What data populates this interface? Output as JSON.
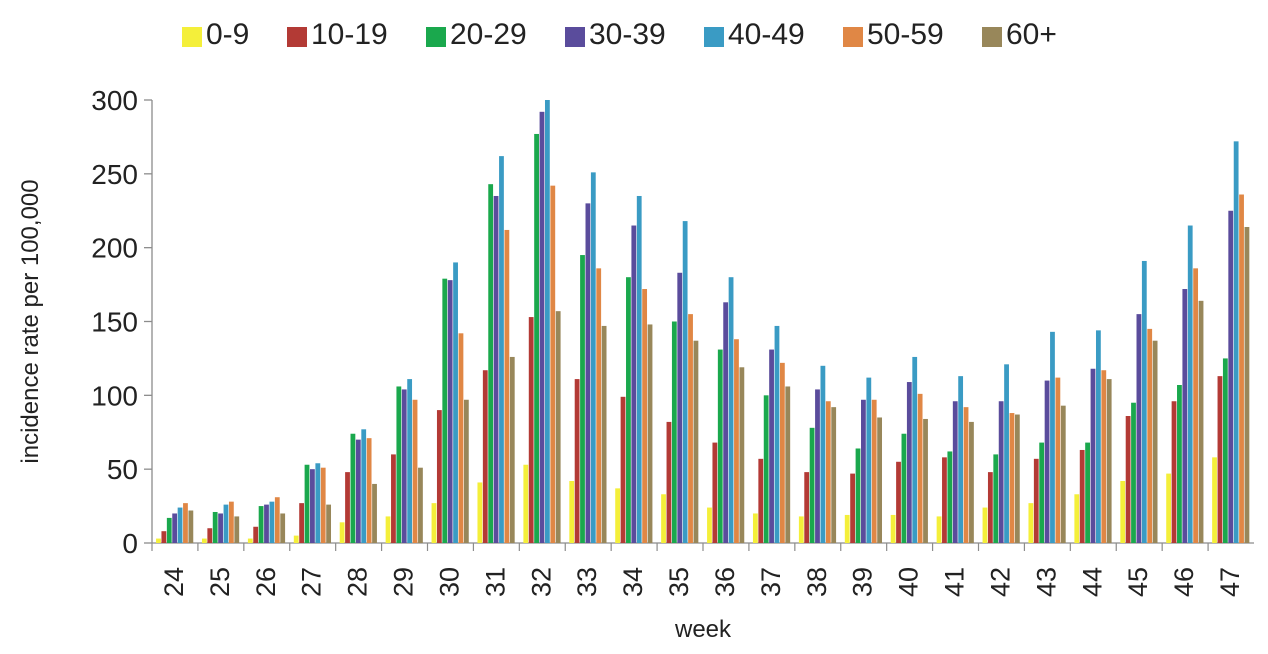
{
  "chart_data": {
    "type": "bar",
    "xlabel": "week",
    "ylabel": "incidence rate per 100,000",
    "ylim": [
      0,
      300
    ],
    "yticks": [
      "0",
      "50",
      "100",
      "150",
      "200",
      "250",
      "300"
    ],
    "categories": [
      "24",
      "25",
      "26",
      "27",
      "28",
      "29",
      "30",
      "31",
      "32",
      "33",
      "34",
      "35",
      "36",
      "37",
      "38",
      "39",
      "40",
      "41",
      "42",
      "43",
      "44",
      "45",
      "46",
      "47"
    ],
    "legend_position": "top",
    "grid": false,
    "series": [
      {
        "name": "0-9",
        "color": "#f4ef3a",
        "values": [
          3,
          3,
          3,
          5,
          14,
          18,
          27,
          41,
          53,
          42,
          37,
          33,
          24,
          20,
          18,
          19,
          19,
          18,
          24,
          27,
          33,
          42,
          47,
          58
        ]
      },
      {
        "name": "10-19",
        "color": "#b33a35",
        "values": [
          8,
          10,
          11,
          27,
          48,
          60,
          90,
          117,
          153,
          111,
          99,
          82,
          68,
          57,
          48,
          47,
          55,
          58,
          48,
          57,
          63,
          86,
          96,
          113
        ]
      },
      {
        "name": "20-29",
        "color": "#1aa84d",
        "values": [
          17,
          21,
          25,
          53,
          74,
          106,
          179,
          243,
          277,
          195,
          180,
          150,
          131,
          100,
          78,
          64,
          74,
          62,
          60,
          68,
          68,
          95,
          107,
          125
        ]
      },
      {
        "name": "30-39",
        "color": "#5a4c9c",
        "values": [
          20,
          20,
          26,
          50,
          70,
          104,
          178,
          235,
          292,
          230,
          215,
          183,
          163,
          131,
          104,
          97,
          109,
          96,
          96,
          110,
          118,
          155,
          172,
          225
        ]
      },
      {
        "name": "40-49",
        "color": "#3a9bc4",
        "values": [
          24,
          26,
          28,
          54,
          77,
          111,
          190,
          262,
          300,
          251,
          235,
          218,
          180,
          147,
          120,
          112,
          126,
          113,
          121,
          143,
          144,
          191,
          215,
          272
        ]
      },
      {
        "name": "50-59",
        "color": "#e08745",
        "values": [
          27,
          28,
          31,
          51,
          71,
          97,
          142,
          212,
          242,
          186,
          172,
          155,
          138,
          122,
          96,
          97,
          101,
          92,
          88,
          112,
          117,
          145,
          186,
          236
        ]
      },
      {
        "name": "60+",
        "color": "#98875a",
        "values": [
          22,
          18,
          20,
          26,
          40,
          51,
          97,
          126,
          157,
          147,
          148,
          137,
          119,
          106,
          92,
          85,
          84,
          82,
          87,
          93,
          111,
          137,
          164,
          214
        ]
      }
    ]
  }
}
